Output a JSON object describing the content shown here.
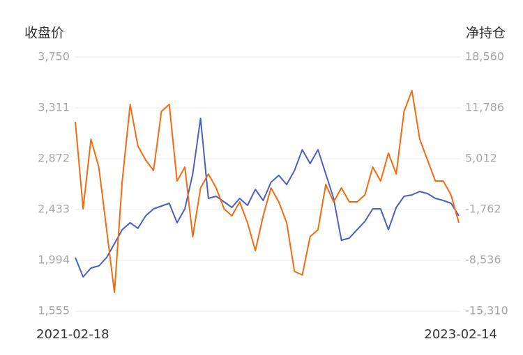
{
  "chart_data": {
    "type": "line",
    "y_label": "收盘价",
    "y2_label": "净持仓",
    "categories": [
      "2021-02-18",
      null,
      null,
      null,
      null,
      null,
      null,
      null,
      null,
      null,
      null,
      null,
      null,
      null,
      null,
      null,
      null,
      null,
      null,
      null,
      null,
      null,
      null,
      null,
      null,
      null,
      null,
      null,
      null,
      null,
      null,
      null,
      null,
      null,
      null,
      null,
      null,
      null,
      null,
      null,
      null,
      null,
      null,
      null,
      null,
      null,
      null,
      null,
      null,
      "2023-02-14"
    ],
    "series": [
      {
        "color": "#4a5fc1",
        "axis": "y",
        "values": [
          2018,
          1850,
          1928,
          1946,
          2018,
          2138,
          2259,
          2319,
          2271,
          2379,
          2439,
          2463,
          2487,
          2319,
          2439,
          2740,
          3221,
          2529,
          2547,
          2499,
          2451,
          2529,
          2469,
          2607,
          2511,
          2668,
          2728,
          2649,
          2770,
          2950,
          2830,
          2950,
          2740,
          2529,
          2168,
          2186,
          2259,
          2331,
          2439,
          2439,
          2259,
          2451,
          2547,
          2559,
          2589,
          2571,
          2529,
          2511,
          2487,
          2379
        ]
      },
      {
        "color": "#f56a0e",
        "axis": "y2",
        "values": [
          9931,
          -1668,
          7611,
          3899,
          -4452,
          -12803,
          2043,
          12250,
          6683,
          4827,
          3435,
          11322,
          12250,
          2043,
          3899,
          -5380,
          1115,
          2971,
          1115,
          -1668,
          -2596,
          -740,
          -3524,
          -7236,
          -2596,
          1115,
          -740,
          -3524,
          -10019,
          -10483,
          -5380,
          -4452,
          1579,
          -740,
          1115,
          -740,
          -740,
          188,
          3899,
          2043,
          5755,
          2971,
          11322,
          14106,
          7611,
          4827,
          2043,
          2043,
          188,
          -3524
        ]
      }
    ],
    "ylim": [
      1555,
      3750
    ],
    "yticks": [
      {
        "value": 1555,
        "label": "1,555"
      },
      {
        "value": 1994,
        "label": "1,994"
      },
      {
        "value": 2433,
        "label": "2,433"
      },
      {
        "value": 2872,
        "label": "2,872"
      },
      {
        "value": 3311,
        "label": "3,311"
      },
      {
        "value": 3750,
        "label": "3,750"
      }
    ],
    "y2lim": [
      -15310,
      18560
    ],
    "y2ticks": [
      {
        "value": -15310,
        "label": "-15,310"
      },
      {
        "value": -8536,
        "label": "-8,536"
      },
      {
        "value": -1762,
        "label": "-1,762"
      },
      {
        "value": 5012,
        "label": "5,012"
      },
      {
        "value": 11786,
        "label": "11,786"
      },
      {
        "value": 18560,
        "label": "18,560"
      }
    ],
    "grid": true
  }
}
